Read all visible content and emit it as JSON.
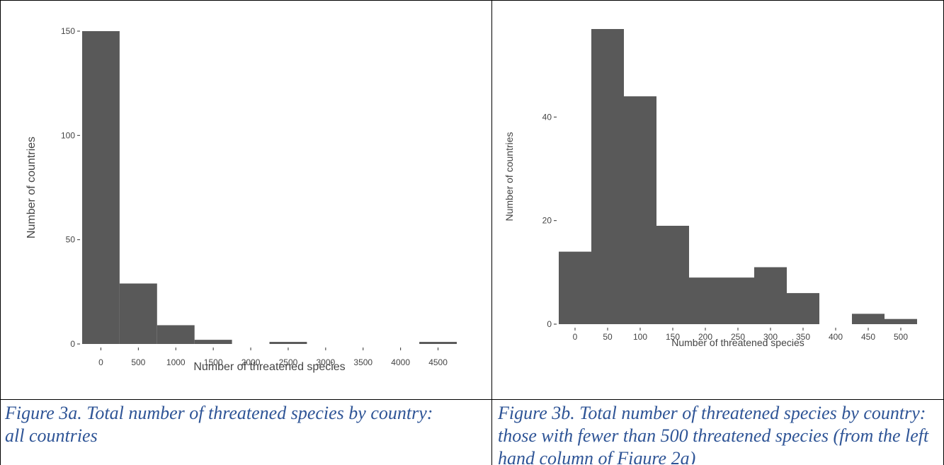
{
  "chart_data": [
    {
      "type": "bar",
      "xlabel": "Number of threatened species",
      "ylabel": "Number of countries",
      "x_ticks": [
        0,
        500,
        1000,
        1500,
        2000,
        2500,
        3000,
        3500,
        4000,
        4500
      ],
      "y_ticks": [
        0,
        50,
        100,
        150
      ],
      "xlim": [
        -250,
        4750
      ],
      "ylim": [
        0,
        150
      ],
      "bin_width": 500,
      "bins": [
        {
          "start": -250,
          "end": 250,
          "count": 150
        },
        {
          "start": 250,
          "end": 750,
          "count": 29
        },
        {
          "start": 750,
          "end": 1250,
          "count": 9
        },
        {
          "start": 1250,
          "end": 1750,
          "count": 2
        },
        {
          "start": 1750,
          "end": 2250,
          "count": 0
        },
        {
          "start": 2250,
          "end": 2750,
          "count": 1
        },
        {
          "start": 2750,
          "end": 3250,
          "count": 0
        },
        {
          "start": 3250,
          "end": 3750,
          "count": 0
        },
        {
          "start": 3750,
          "end": 4250,
          "count": 0
        },
        {
          "start": 4250,
          "end": 4750,
          "count": 1
        }
      ],
      "grid": false,
      "bar_color": "#595959"
    },
    {
      "type": "bar",
      "xlabel": "Number of threatened species",
      "ylabel": "Number of countries",
      "x_ticks": [
        0,
        50,
        100,
        150,
        200,
        250,
        300,
        350,
        400,
        450,
        500
      ],
      "y_ticks": [
        0,
        20,
        40
      ],
      "xlim": [
        -25,
        525
      ],
      "ylim": [
        0,
        57
      ],
      "bin_width": 50,
      "bins": [
        {
          "start": -25,
          "end": 25,
          "count": 14
        },
        {
          "start": 25,
          "end": 75,
          "count": 57
        },
        {
          "start": 75,
          "end": 125,
          "count": 44
        },
        {
          "start": 125,
          "end": 175,
          "count": 19
        },
        {
          "start": 175,
          "end": 225,
          "count": 9
        },
        {
          "start": 225,
          "end": 275,
          "count": 9
        },
        {
          "start": 275,
          "end": 325,
          "count": 11
        },
        {
          "start": 325,
          "end": 375,
          "count": 6
        },
        {
          "start": 375,
          "end": 425,
          "count": 0
        },
        {
          "start": 425,
          "end": 475,
          "count": 2
        },
        {
          "start": 475,
          "end": 525,
          "count": 1
        }
      ],
      "grid": false,
      "bar_color": "#595959"
    }
  ],
  "captions": {
    "left": "Figure 3a. Total number of threatened species by country: all countries",
    "right": "Figure 3b. Total number of threatened species by country: those with fewer than 500 threatened species (from the left hand column of Figure 2a)"
  },
  "colors": {
    "caption": "#2e5496",
    "bars": "#595959",
    "text": "#444444",
    "border": "#000000"
  }
}
